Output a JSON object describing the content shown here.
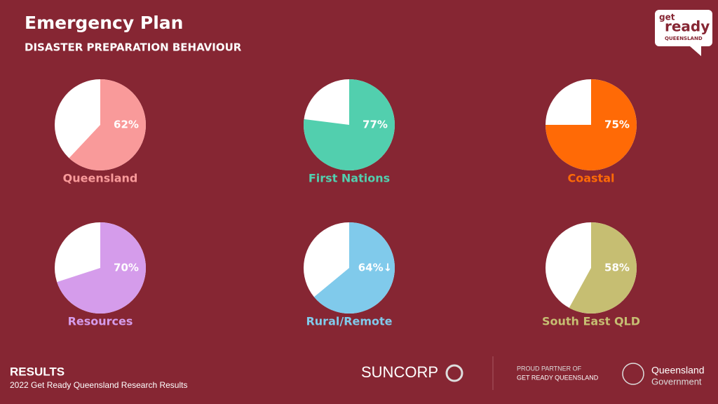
{
  "title": "Emergency Plan",
  "subtitle": "DISASTER PREPARATION BEHAVIOUR",
  "logo": {
    "line1": "get",
    "line2": "ready",
    "line3": "QUEENSLAND"
  },
  "footer": {
    "heading": "RESULTS",
    "note": "2022 Get Ready Queensland Research Results",
    "sponsor": "SUNCORP",
    "partner_line1": "PROUD PARTNER OF",
    "partner_line2": "GET READY QUEENSLAND",
    "gov_line1": "Queensland",
    "gov_line2": "Government"
  },
  "chart_data": [
    {
      "type": "pie",
      "title": "Queensland",
      "values": [
        62
      ],
      "value_labels": [
        "62%"
      ],
      "color": "#f99a9a"
    },
    {
      "type": "pie",
      "title": "First Nations",
      "values": [
        77
      ],
      "value_labels": [
        "77%"
      ],
      "color": "#52cfae"
    },
    {
      "type": "pie",
      "title": "Coastal",
      "values": [
        75
      ],
      "value_labels": [
        "75%"
      ],
      "color": "#ff6a06"
    },
    {
      "type": "pie",
      "title": "Resources",
      "values": [
        70
      ],
      "value_labels": [
        "70%"
      ],
      "color": "#d59ceb"
    },
    {
      "type": "pie",
      "title": "Rural/Remote",
      "values": [
        64
      ],
      "value_labels": [
        "64%↓"
      ],
      "color": "#80caeb"
    },
    {
      "type": "pie",
      "title": "South East QLD",
      "values": [
        58
      ],
      "value_labels": [
        "58%"
      ],
      "color": "#c6be72"
    }
  ]
}
